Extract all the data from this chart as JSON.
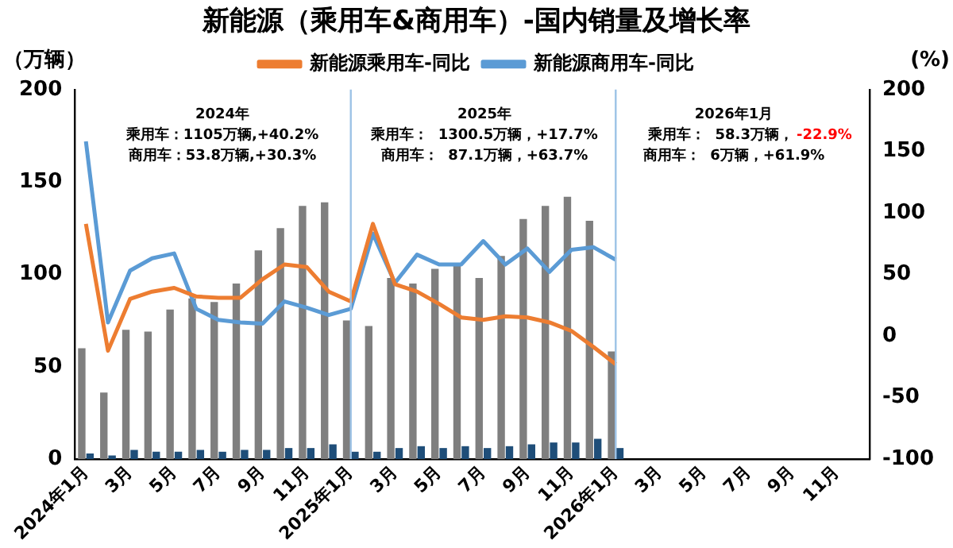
{
  "chart_data": {
    "type": "bar",
    "title": "新能源（乘用车&商用车）-国内销量及增长率",
    "ylabel": "（万辆）",
    "y2label": "(%)",
    "categories": [
      "2024年1月",
      null,
      "3月",
      null,
      "5月",
      null,
      "7月",
      null,
      "9月",
      null,
      "11月",
      null,
      "2025年1月",
      null,
      "3月",
      null,
      "5月",
      null,
      "7月",
      null,
      "9月",
      null,
      "11月",
      null,
      "2026年1月",
      null,
      "3月",
      null,
      "5月",
      null,
      "7月",
      null,
      "9月",
      null,
      "11月",
      null
    ],
    "series": [
      {
        "color": "#7f7f7f",
        "values": [
          60,
          36,
          70,
          69,
          81,
          87,
          85,
          95,
          113,
          125,
          137,
          139,
          75,
          72,
          98,
          95,
          103,
          105,
          98,
          110,
          130,
          137,
          142,
          129,
          58.3,
          null,
          null,
          null,
          null,
          null,
          null,
          null,
          null,
          null,
          null,
          null
        ]
      },
      {
        "color": "#1f4e79",
        "values": [
          3,
          2,
          5,
          4,
          4,
          5,
          4,
          5,
          5,
          6,
          6,
          8,
          4,
          4,
          6,
          7,
          6,
          7,
          6,
          7,
          8,
          9,
          9,
          11,
          6,
          null,
          null,
          null,
          null,
          null,
          null,
          null,
          null,
          null,
          null,
          null
        ]
      },
      {
        "type": "line",
        "axis": "y2",
        "name": "新能源乘用车-同比",
        "color": "#ed7d31",
        "values": [
          91,
          -12,
          30,
          36,
          39,
          32,
          31,
          31,
          46,
          58,
          56,
          36,
          28,
          91,
          42,
          36,
          26,
          15,
          13,
          16,
          15,
          11,
          4,
          -9,
          -22.9,
          null,
          null,
          null,
          null,
          null,
          null,
          null,
          null,
          null,
          null,
          null
        ]
      },
      {
        "type": "line",
        "axis": "y2",
        "name": "新能源商用车-同比",
        "color": "#5b9bd5",
        "values": [
          158,
          11,
          53,
          63,
          67,
          22,
          13,
          11,
          10,
          28,
          23,
          17,
          22,
          83,
          43,
          66,
          58,
          58,
          77,
          58,
          71,
          52,
          70,
          72,
          61.9,
          null,
          null,
          null,
          null,
          null,
          null,
          null,
          null,
          null,
          null,
          null
        ]
      }
    ],
    "ylim": [
      0,
      200
    ],
    "yticks": [
      0,
      50,
      100,
      150,
      200
    ],
    "y2lim": [
      -100,
      200
    ],
    "y2ticks": [
      -100,
      -50,
      0,
      50,
      100,
      150,
      200
    ],
    "ref_lines": [
      {
        "axis": "x",
        "value": "2025年1月",
        "color": "#9dc3e6"
      },
      {
        "axis": "x",
        "value": "2026年1月",
        "color": "#9dc3e6"
      }
    ],
    "annotations": [
      "2024年",
      "乘用车：1105万辆,+40.2%",
      "商用车：53.8万辆,+30.3%",
      "2025年",
      "乘用车：  1300.5万辆，+17.7%",
      "商用车：  87.1万辆，+63.7%",
      "2026年1月",
      "乘用车：  58.3万辆，",
      "-22.9%",
      "商用车：  6万辆，+61.9%"
    ],
    "grid": false,
    "legend": "top",
    "marker": "none",
    "line_style": "solid"
  }
}
